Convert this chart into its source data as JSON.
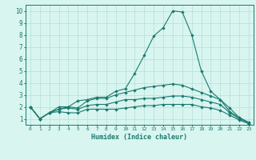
{
  "xlabel": "Humidex (Indice chaleur)",
  "x": [
    0,
    1,
    2,
    3,
    4,
    5,
    6,
    7,
    8,
    9,
    10,
    11,
    12,
    13,
    14,
    15,
    16,
    17,
    18,
    19,
    20,
    21,
    22,
    23
  ],
  "line1": [
    2,
    1,
    1.5,
    2,
    2,
    2.5,
    2.6,
    2.8,
    2.8,
    3.3,
    3.5,
    4.8,
    6.3,
    7.9,
    8.6,
    10,
    9.9,
    8,
    5,
    3.3,
    2.6,
    1.9,
    1.1,
    0.7
  ],
  "line2": [
    2,
    1,
    1.5,
    1.8,
    2,
    1.9,
    2.5,
    2.7,
    2.7,
    3.0,
    3.2,
    3.4,
    3.6,
    3.7,
    3.8,
    3.9,
    3.8,
    3.5,
    3.2,
    2.9,
    2.6,
    1.6,
    1.1,
    0.7
  ],
  "line3": [
    2,
    1,
    1.5,
    1.8,
    1.9,
    1.8,
    2.1,
    2.2,
    2.2,
    2.4,
    2.6,
    2.6,
    2.7,
    2.7,
    2.8,
    2.9,
    2.9,
    2.8,
    2.6,
    2.4,
    2.2,
    1.5,
    1.0,
    0.6
  ],
  "line4": [
    2,
    1,
    1.5,
    1.6,
    1.5,
    1.5,
    1.8,
    1.8,
    1.8,
    1.8,
    1.9,
    2.0,
    2.1,
    2.1,
    2.2,
    2.2,
    2.2,
    2.2,
    2.0,
    1.9,
    1.7,
    1.3,
    0.9,
    0.6
  ],
  "line_color": "#1a7a6e",
  "bg_color": "#d8f5f0",
  "grid_color": "#b8ddd8",
  "ylim": [
    0.5,
    10.5
  ],
  "xlim": [
    -0.5,
    23.5
  ]
}
